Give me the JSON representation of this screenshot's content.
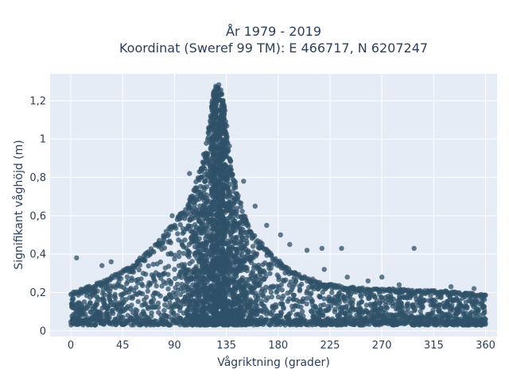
{
  "chart_data": {
    "type": "scatter",
    "title_line1": "År 1979 - 2019",
    "title_line2": "Koordinat (Sweref 99 TM): E 466717, N 6207247",
    "xlabel": "Vågriktning (grader)",
    "ylabel": "Signifikant våghöjd (m)",
    "xlim": [
      -18,
      370
    ],
    "ylim": [
      -0.03,
      1.34
    ],
    "xticks": [
      0,
      45,
      90,
      135,
      180,
      225,
      270,
      315,
      360
    ],
    "xtick_labels": [
      "0",
      "45",
      "90",
      "135",
      "180",
      "225",
      "270",
      "315",
      "360"
    ],
    "yticks": [
      0,
      0.2,
      0.4,
      0.6,
      0.8,
      1,
      1.2
    ],
    "ytick_labels": [
      "0",
      "0,2",
      "0,4",
      "0,6",
      "0,8",
      "1",
      "1,2"
    ],
    "grid": true,
    "colors": {
      "marker": "#2f5168",
      "plot_bg": "#e5ecf6",
      "grid": "#ffffff",
      "text": "#2a3f5f"
    },
    "envelope": {
      "direction": [
        0,
        10,
        20,
        30,
        40,
        50,
        60,
        70,
        80,
        90,
        100,
        105,
        110,
        115,
        118,
        120,
        122,
        124,
        126,
        128,
        130,
        132,
        134,
        136,
        138,
        140,
        145,
        150,
        155,
        160,
        170,
        180,
        190,
        200,
        220,
        240,
        260,
        280,
        300,
        320,
        340,
        360
      ],
      "max_height": [
        0.2,
        0.22,
        0.24,
        0.27,
        0.3,
        0.33,
        0.38,
        0.43,
        0.5,
        0.57,
        0.65,
        0.72,
        0.8,
        0.92,
        1.0,
        1.08,
        1.18,
        1.25,
        1.28,
        1.29,
        1.27,
        1.22,
        1.14,
        1.05,
        0.95,
        0.85,
        0.72,
        0.62,
        0.55,
        0.5,
        0.43,
        0.37,
        0.32,
        0.29,
        0.25,
        0.23,
        0.22,
        0.22,
        0.21,
        0.21,
        0.2,
        0.19
      ],
      "min_height": 0.03
    },
    "outliers": [
      {
        "x": 5,
        "y": 0.38
      },
      {
        "x": 27,
        "y": 0.34
      },
      {
        "x": 35,
        "y": 0.36
      },
      {
        "x": 88,
        "y": 0.6
      },
      {
        "x": 103,
        "y": 0.82
      },
      {
        "x": 150,
        "y": 0.78
      },
      {
        "x": 160,
        "y": 0.65
      },
      {
        "x": 170,
        "y": 0.55
      },
      {
        "x": 182,
        "y": 0.5
      },
      {
        "x": 190,
        "y": 0.45
      },
      {
        "x": 205,
        "y": 0.42
      },
      {
        "x": 218,
        "y": 0.43
      },
      {
        "x": 235,
        "y": 0.43
      },
      {
        "x": 298,
        "y": 0.43
      },
      {
        "x": 220,
        "y": 0.32
      },
      {
        "x": 240,
        "y": 0.28
      },
      {
        "x": 258,
        "y": 0.26
      },
      {
        "x": 270,
        "y": 0.28
      },
      {
        "x": 285,
        "y": 0.24
      },
      {
        "x": 330,
        "y": 0.23
      },
      {
        "x": 350,
        "y": 0.22
      }
    ]
  }
}
